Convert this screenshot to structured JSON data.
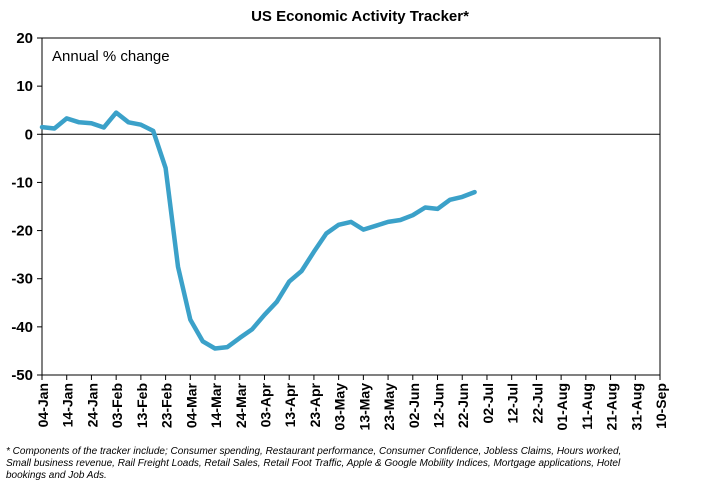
{
  "chart_data": {
    "type": "line",
    "title": "US Economic Activity Tracker*",
    "ylabel": "Annual % change",
    "xlabel": "",
    "ylim": [
      -50,
      20
    ],
    "yticks": [
      20,
      10,
      0,
      -10,
      -20,
      -30,
      -40,
      -50
    ],
    "grid": false,
    "x_tick_labels": [
      "04-Jan",
      "14-Jan",
      "24-Jan",
      "03-Feb",
      "13-Feb",
      "23-Feb",
      "04-Mar",
      "14-Mar",
      "24-Mar",
      "03-Apr",
      "13-Apr",
      "23-Apr",
      "03-May",
      "13-May",
      "23-May",
      "02-Jun",
      "12-Jun",
      "22-Jun",
      "02-Jul",
      "12-Jul",
      "22-Jul",
      "01-Aug",
      "11-Aug",
      "21-Aug",
      "31-Aug",
      "10-Sep"
    ],
    "line_color": "#3ba1c9",
    "series": [
      {
        "x": [
          "2020-01-04",
          "2020-01-09",
          "2020-01-14",
          "2020-01-19",
          "2020-01-24",
          "2020-01-29",
          "2020-02-03",
          "2020-02-08",
          "2020-02-13",
          "2020-02-18",
          "2020-02-23",
          "2020-02-28",
          "2020-03-04",
          "2020-03-09",
          "2020-03-14",
          "2020-03-19",
          "2020-03-24",
          "2020-03-29",
          "2020-04-03",
          "2020-04-08",
          "2020-04-13",
          "2020-04-18",
          "2020-04-23",
          "2020-04-28",
          "2020-05-03",
          "2020-05-08",
          "2020-05-13",
          "2020-05-18",
          "2020-05-23",
          "2020-05-28",
          "2020-06-02",
          "2020-06-07",
          "2020-06-12",
          "2020-06-17",
          "2020-06-22",
          "2020-06-27",
          "2020-07-02",
          "2020-07-07",
          "2020-07-12",
          "2020-07-17",
          "2020-07-22",
          "2020-07-27",
          "2020-08-01",
          "2020-08-06",
          "2020-08-11",
          "2020-08-16",
          "2020-08-21",
          "2020-08-26",
          "2020-08-31",
          "2020-09-05"
        ],
        "values": [
          1.5,
          1.2,
          3.3,
          2.5,
          2.3,
          1.4,
          4.5,
          2.5,
          2.0,
          0.7,
          -7.0,
          -27.5,
          -38.5,
          -43.0,
          -44.5,
          -44.2,
          -42.3,
          -40.5,
          -37.5,
          -34.8,
          -30.6,
          -28.4,
          -24.4,
          -20.6,
          -18.8,
          -18.2,
          -19.8,
          -19.0,
          -18.2,
          -17.8,
          -16.8,
          -15.2,
          -15.5,
          -13.6,
          -13.0,
          -12.0,
          null,
          null,
          null,
          null,
          null,
          null,
          null,
          null,
          null,
          null,
          null,
          null,
          null,
          null
        ]
      }
    ]
  },
  "footnote": "* Components of the tracker include; Consumer spending, Restaurant performance, Consumer Confidence, Jobless Claims, Hours worked, Small business revenue, Rail Freight Loads, Retail Sales, Retail Foot Traffic, Apple & Google Mobility Indices, Mortgage applications, Hotel bookings and Job Ads."
}
